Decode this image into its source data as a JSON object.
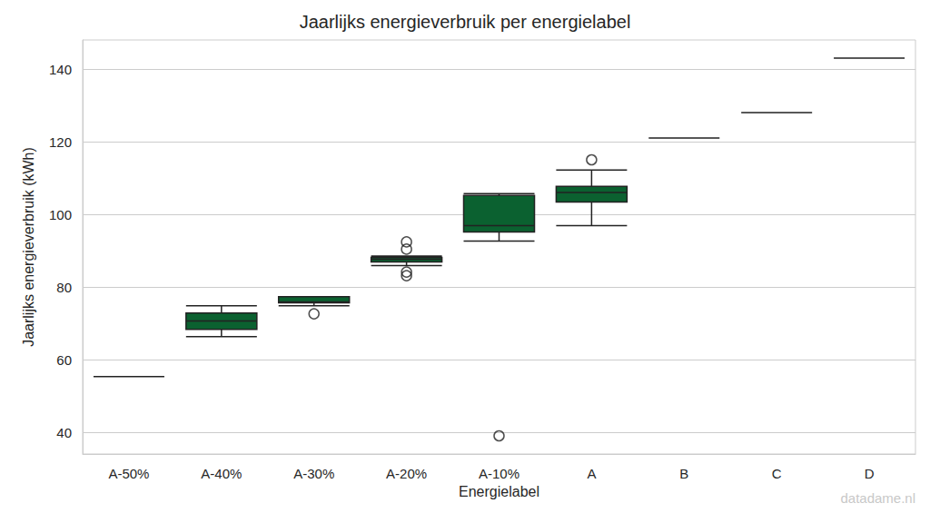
{
  "chart_data": {
    "type": "boxplot",
    "title": "Jaarlijks energieverbruik per energielabel",
    "x_label": "Energielabel",
    "y_label": "Jaarlijks energieverbruik (kWh)",
    "categories": [
      "A-50%",
      "A-40%",
      "A-30%",
      "A-20%",
      "A-10%",
      "A",
      "B",
      "C",
      "D"
    ],
    "boxes": [
      [
        55.3,
        55.3,
        55.3,
        55.3,
        55.3
      ],
      [
        66.3,
        68.3,
        70.6,
        72.8,
        74.8
      ],
      [
        74.8,
        75.6,
        75.9,
        77.3,
        77.3
      ],
      [
        85.9,
        86.9,
        87.6,
        88.1,
        88.5
      ],
      [
        92.6,
        95.1,
        96.9,
        105.2,
        105.7
      ],
      [
        96.9,
        103.4,
        106.0,
        107.7,
        112.2
      ],
      [
        121.0,
        121.0,
        121.0,
        121.0,
        121.0
      ],
      [
        128.0,
        128.0,
        128.0,
        128.0,
        128.0
      ],
      [
        143.0,
        143.0,
        143.0,
        143.0,
        143.0
      ]
    ],
    "outliers": [
      [],
      [],
      [
        72.6
      ],
      [
        92.4,
        90.4,
        84.1,
        83.1
      ],
      [
        39.0
      ],
      [
        115.0
      ],
      [],
      [],
      []
    ],
    "color": "#0b6130",
    "ylim": [
      34,
      148
    ],
    "yticks": [
      40,
      60,
      80,
      100,
      120,
      140
    ],
    "grid": true,
    "watermark": "datadame.nl"
  }
}
